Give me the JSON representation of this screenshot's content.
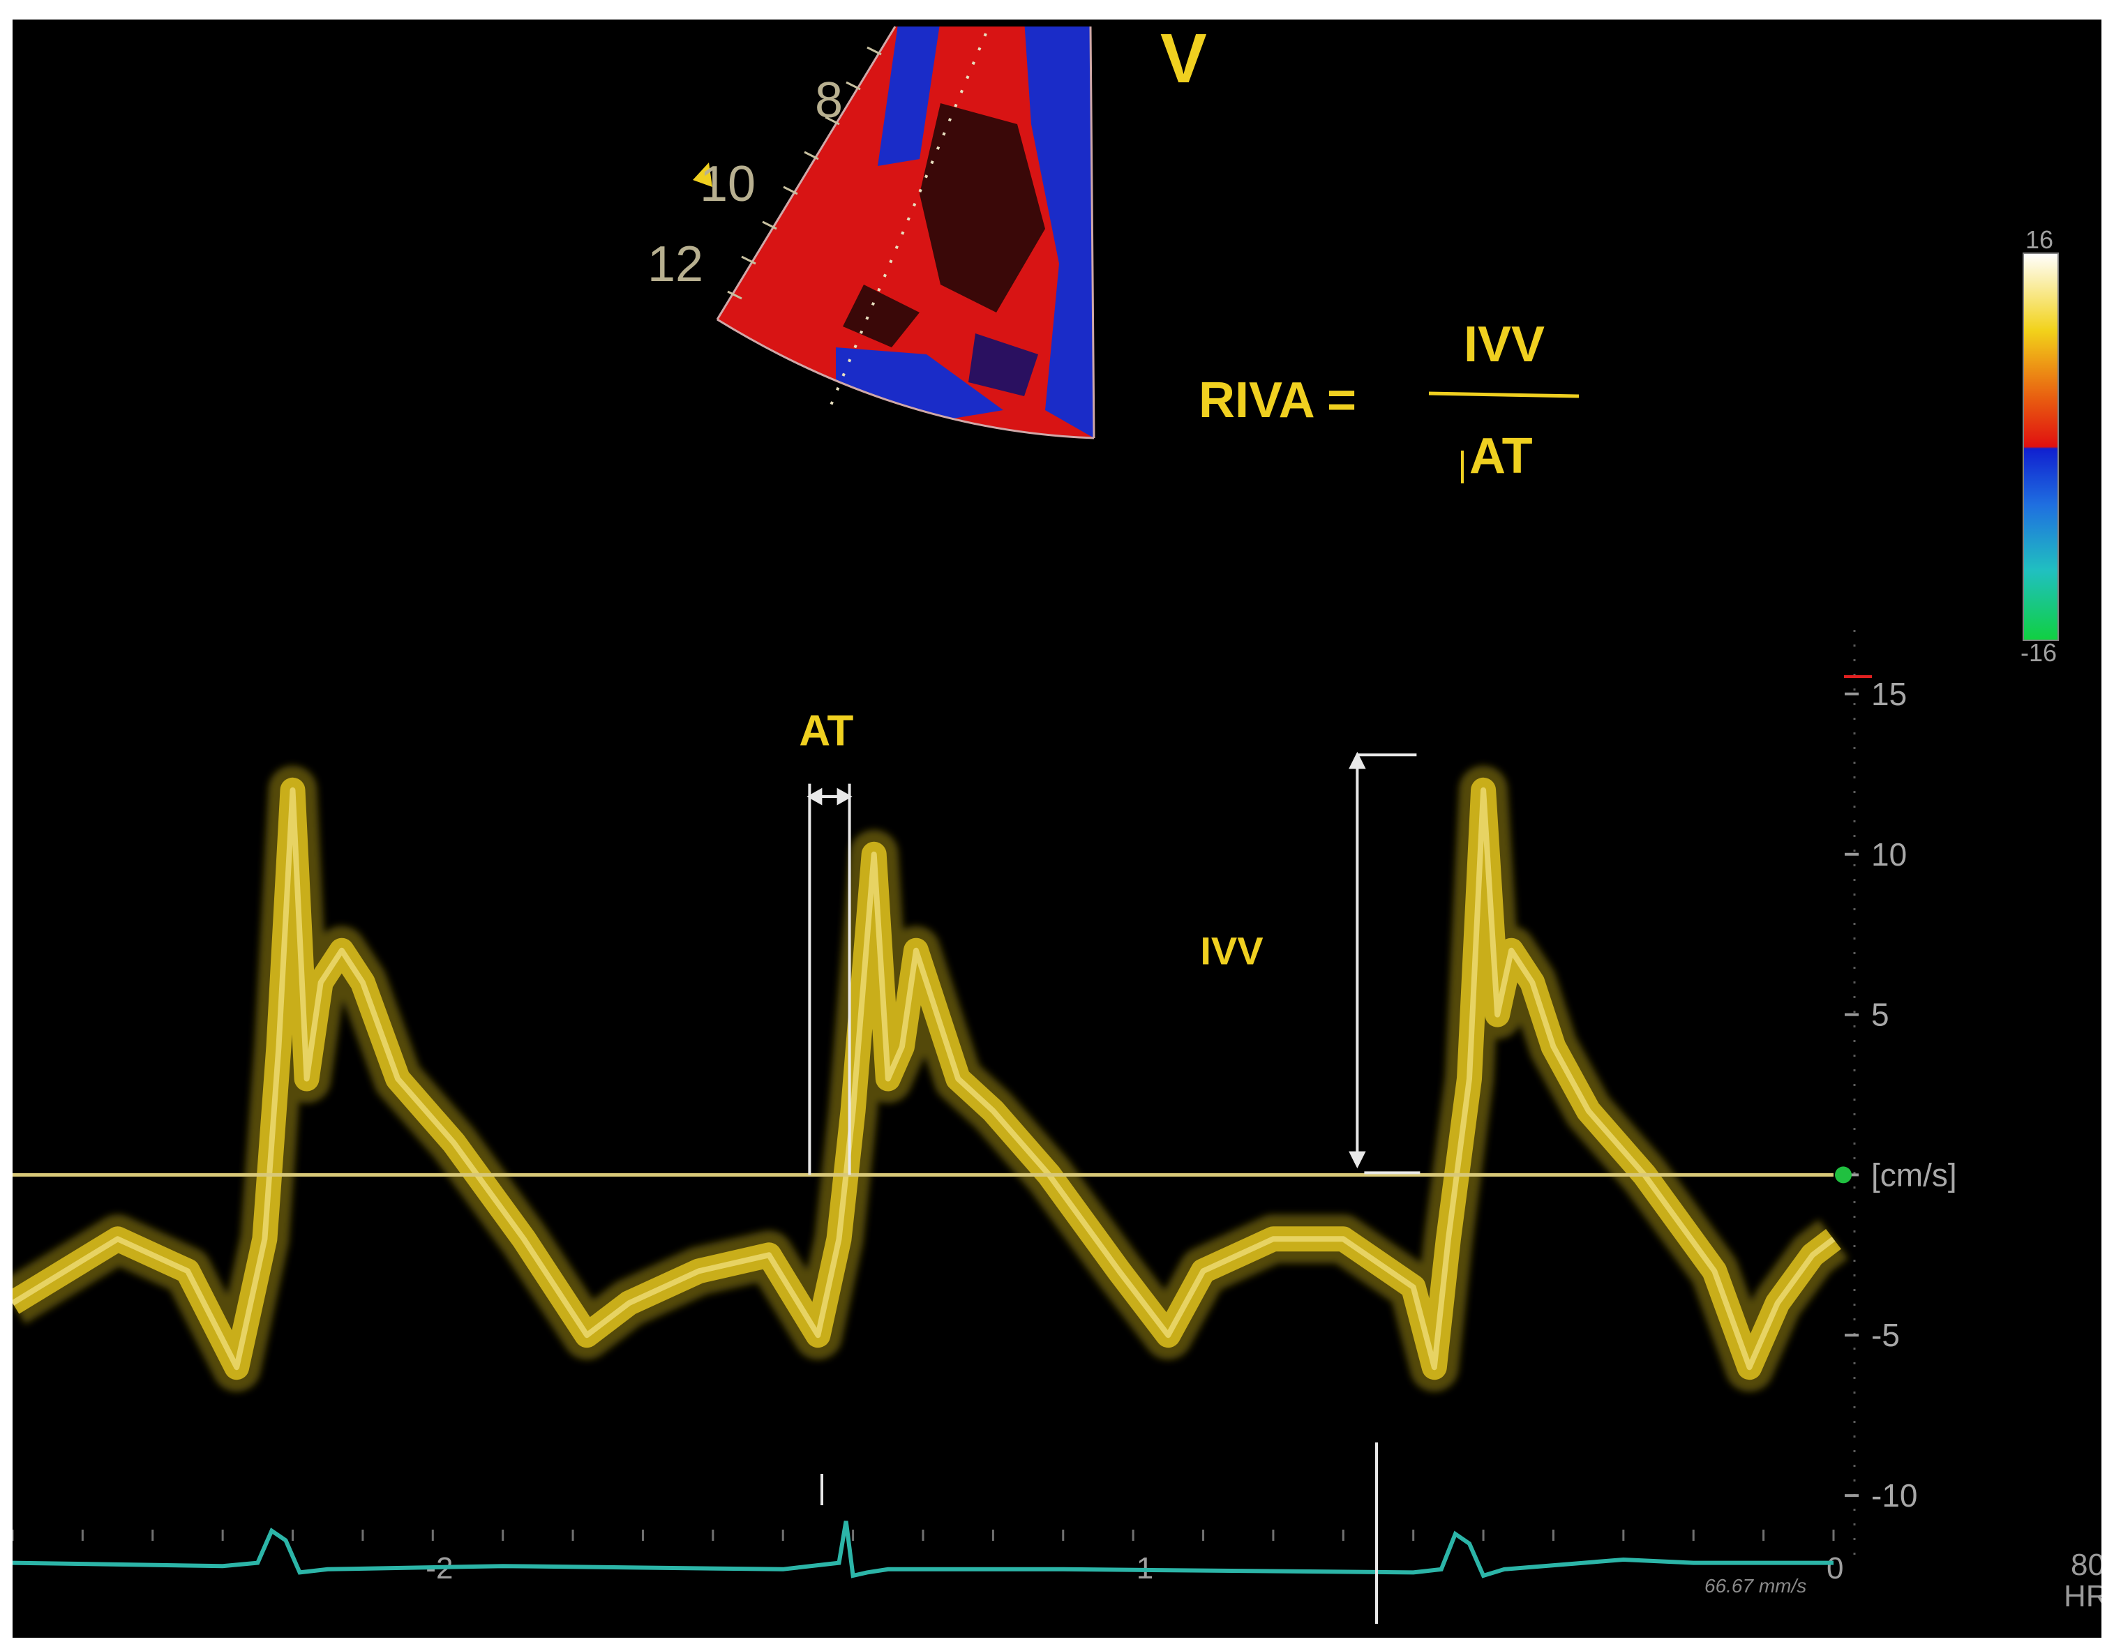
{
  "sector": {
    "view_letter": "V",
    "depth_labels": [
      "8",
      "10",
      "12"
    ]
  },
  "formula": {
    "lhs": "RIVA =",
    "numerator": "IVV",
    "denominator": "AT"
  },
  "color_scale": {
    "max_label": "16",
    "min_label": "-16",
    "colors": [
      "#ffffff",
      "#f2d21a",
      "#e85a10",
      "#e01010",
      "#1020d0",
      "#1f6fe0",
      "#20c0c0",
      "#10d040"
    ]
  },
  "annotations": {
    "at": "AT",
    "ivv": "IVV"
  },
  "ecg": {
    "color": "#2cb5a8",
    "speed_label": "66.67 mm/s",
    "hr_value": "80",
    "hr_label": "HR"
  },
  "chart_data": {
    "type": "line",
    "title": "",
    "xlabel": "",
    "ylabel": "[cm/s]",
    "xlim": [
      -2.6,
      0
    ],
    "ylim": [
      -12,
      17
    ],
    "x_ticks": [
      -2,
      -1,
      0
    ],
    "x_tick_labels": [
      "-2",
      "-1",
      "0"
    ],
    "y_ticks": [
      15,
      10,
      5,
      0,
      -5,
      -10
    ],
    "y_tick_labels": [
      "15",
      "10",
      "5",
      "[cm/s]",
      "-5",
      "-10"
    ],
    "grid": false,
    "baseline_color": "#d8c878",
    "spectrum_color": "#f0d020",
    "series": [
      {
        "x": [
          -2.6,
          -2.45,
          -2.35,
          -2.28,
          -2.24,
          -2.22,
          -2.2,
          -2.18,
          -2.16,
          -2.13,
          -2.1,
          -2.05,
          -1.97,
          -1.87,
          -1.78,
          -1.72,
          -1.62,
          -1.52,
          -1.45,
          -1.42,
          -1.4,
          -1.37,
          -1.35,
          -1.33,
          -1.31,
          -1.28,
          -1.25,
          -1.2,
          -1.12,
          -1.02,
          -0.95,
          -0.9,
          -0.8,
          -0.7,
          -0.6,
          -0.57,
          -0.55,
          -0.52,
          -0.5,
          -0.48,
          -0.46,
          -0.43,
          -0.4,
          -0.35,
          -0.27,
          -0.17,
          -0.12,
          -0.08,
          -0.03,
          0
        ],
        "y": [
          -4,
          -2,
          -3,
          -6,
          -2,
          4,
          12,
          3,
          6,
          7,
          6,
          3,
          1,
          -2,
          -5,
          -4,
          -3,
          -2.5,
          -5,
          -2,
          2,
          10,
          3,
          4,
          7,
          5,
          3,
          2,
          0,
          -3,
          -5,
          -3,
          -2,
          -2,
          -3.5,
          -6,
          -2,
          3,
          12,
          5,
          7,
          6,
          4,
          2,
          0,
          -3,
          -6,
          -4,
          -2.5,
          -2
        ]
      }
    ],
    "ecg_trace": {
      "x": [
        -2.6,
        -2.3,
        -2.25,
        -2.23,
        -2.21,
        -2.19,
        -2.15,
        -1.9,
        -1.5,
        -1.42,
        -1.41,
        -1.4,
        -1.38,
        -1.35,
        -1.1,
        -0.6,
        -0.56,
        -0.54,
        -0.52,
        -0.5,
        -0.47,
        -0.3,
        -0.2,
        0
      ],
      "y": [
        -12.1,
        -12.2,
        -12.1,
        -11.1,
        -11.4,
        -12.4,
        -12.3,
        -12.2,
        -12.3,
        -12.1,
        -10.8,
        -12.5,
        -12.4,
        -12.3,
        -12.3,
        -12.4,
        -12.3,
        -11.2,
        -11.5,
        -12.5,
        -12.3,
        -12.0,
        -12.1,
        -12.1
      ]
    }
  }
}
